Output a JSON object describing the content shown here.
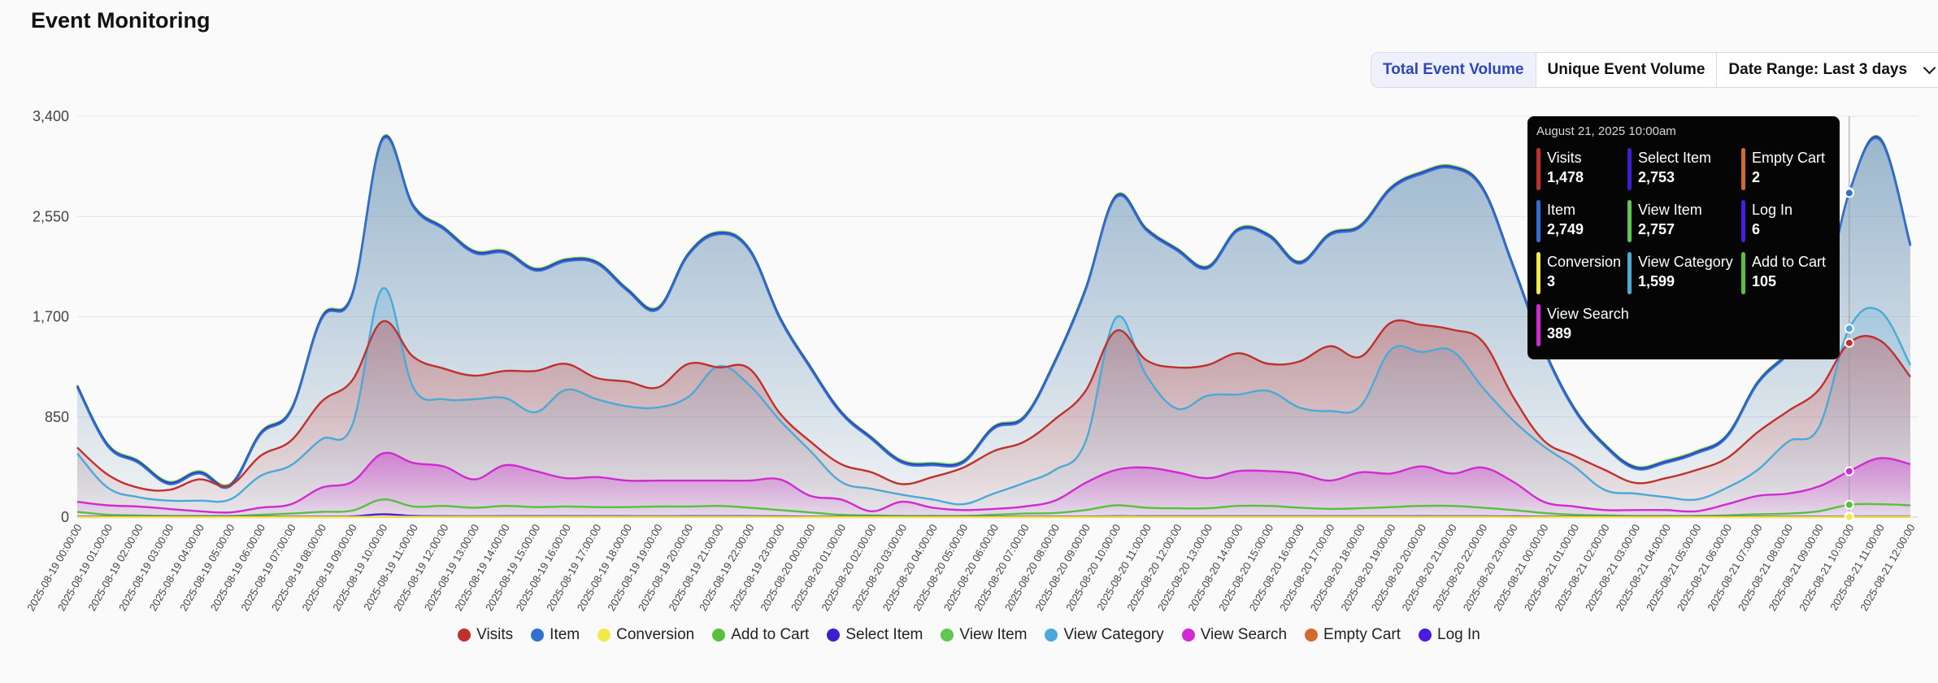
{
  "page": {
    "title": "Event Monitoring"
  },
  "toolbar": {
    "total_label": "Total Event Volume",
    "unique_label": "Unique Event Volume",
    "range_label": "Date Range: Last 3 days"
  },
  "tooltip": {
    "date": "August 21, 2025 10:00am",
    "entries": [
      {
        "name": "Visits",
        "value": "1,478",
        "color": "#c0302c"
      },
      {
        "name": "Select Item",
        "value": "2,753",
        "color": "#3a1fd0"
      },
      {
        "name": "Empty Cart",
        "value": "2",
        "color": "#d2692e"
      },
      {
        "name": "Item",
        "value": "2,749",
        "color": "#3070d0"
      },
      {
        "name": "View Item",
        "value": "2,757",
        "color": "#5ec94e"
      },
      {
        "name": "Log In",
        "value": "6",
        "color": "#4a1ae0"
      },
      {
        "name": "Conversion",
        "value": "3",
        "color": "#f2e84a"
      },
      {
        "name": "View Category",
        "value": "1,599",
        "color": "#4aa9d9"
      },
      {
        "name": "Add to Cart",
        "value": "105",
        "color": "#58c040"
      },
      {
        "name": "View Search",
        "value": "389",
        "color": "#d22ad2"
      }
    ]
  },
  "legend": [
    {
      "name": "Visits",
      "color": "#c0302c"
    },
    {
      "name": "Item",
      "color": "#3070d0"
    },
    {
      "name": "Conversion",
      "color": "#f2e84a"
    },
    {
      "name": "Add to Cart",
      "color": "#58c040"
    },
    {
      "name": "Select Item",
      "color": "#3a1fd0"
    },
    {
      "name": "View Item",
      "color": "#5ec94e"
    },
    {
      "name": "View Category",
      "color": "#4aa9d9"
    },
    {
      "name": "View Search",
      "color": "#d22ad2"
    },
    {
      "name": "Empty Cart",
      "color": "#d2692e"
    },
    {
      "name": "Log In",
      "color": "#4a1ae0"
    }
  ],
  "chart_data": {
    "type": "area",
    "title": "",
    "xlabel": "",
    "ylabel": "",
    "ylim": [
      0,
      3400
    ],
    "y_ticks": [
      "0",
      "850",
      "1,700",
      "2,550",
      "3,400"
    ],
    "grid": true,
    "legend_position": "bottom",
    "x": [
      "2025-08-19 00:00:00",
      "2025-08-19 01:00:00",
      "2025-08-19 02:00:00",
      "2025-08-19 03:00:00",
      "2025-08-19 04:00:00",
      "2025-08-19 05:00:00",
      "2025-08-19 06:00:00",
      "2025-08-19 07:00:00",
      "2025-08-19 08:00:00",
      "2025-08-19 09:00:00",
      "2025-08-19 10:00:00",
      "2025-08-19 11:00:00",
      "2025-08-19 12:00:00",
      "2025-08-19 13:00:00",
      "2025-08-19 14:00:00",
      "2025-08-19 15:00:00",
      "2025-08-19 16:00:00",
      "2025-08-19 17:00:00",
      "2025-08-19 18:00:00",
      "2025-08-19 19:00:00",
      "2025-08-19 20:00:00",
      "2025-08-19 21:00:00",
      "2025-08-19 22:00:00",
      "2025-08-19 23:00:00",
      "2025-08-20 00:00:00",
      "2025-08-20 01:00:00",
      "2025-08-20 02:00:00",
      "2025-08-20 03:00:00",
      "2025-08-20 04:00:00",
      "2025-08-20 05:00:00",
      "2025-08-20 06:00:00",
      "2025-08-20 07:00:00",
      "2025-08-20 08:00:00",
      "2025-08-20 09:00:00",
      "2025-08-20 10:00:00",
      "2025-08-20 11:00:00",
      "2025-08-20 12:00:00",
      "2025-08-20 13:00:00",
      "2025-08-20 14:00:00",
      "2025-08-20 15:00:00",
      "2025-08-20 16:00:00",
      "2025-08-20 17:00:00",
      "2025-08-20 18:00:00",
      "2025-08-20 19:00:00",
      "2025-08-20 20:00:00",
      "2025-08-20 21:00:00",
      "2025-08-20 22:00:00",
      "2025-08-20 23:00:00",
      "2025-08-21 00:00:00",
      "2025-08-21 01:00:00",
      "2025-08-21 02:00:00",
      "2025-08-21 03:00:00",
      "2025-08-21 04:00:00",
      "2025-08-21 05:00:00",
      "2025-08-21 06:00:00",
      "2025-08-21 07:00:00",
      "2025-08-21 08:00:00",
      "2025-08-21 09:00:00",
      "2025-08-21 10:00:00",
      "2025-08-21 11:00:00",
      "2025-08-21 12:00:00"
    ],
    "series": [
      {
        "name": "View Item",
        "color": "#5ec94e",
        "values": [
          1120,
          620,
          480,
          300,
          390,
          280,
          720,
          920,
          1700,
          1900,
          3220,
          2650,
          2460,
          2260,
          2260,
          2110,
          2190,
          2170,
          1940,
          1780,
          2240,
          2420,
          2280,
          1700,
          1280,
          900,
          680,
          480,
          460,
          480,
          770,
          860,
          1330,
          1940,
          2730,
          2450,
          2280,
          2130,
          2450,
          2400,
          2170,
          2410,
          2480,
          2800,
          2930,
          2980,
          2800,
          2140,
          1440,
          930,
          620,
          430,
          480,
          560,
          700,
          1150,
          1400,
          1710,
          2757,
          3220,
          2320
        ]
      },
      {
        "name": "Select Item",
        "color": "#3a1fd0",
        "values": [
          1110,
          610,
          470,
          290,
          380,
          270,
          710,
          910,
          1690,
          1890,
          3210,
          2640,
          2450,
          2250,
          2250,
          2100,
          2180,
          2160,
          1930,
          1770,
          2230,
          2410,
          2270,
          1690,
          1270,
          890,
          670,
          470,
          450,
          470,
          760,
          850,
          1320,
          1930,
          2720,
          2440,
          2270,
          2120,
          2440,
          2390,
          2160,
          2400,
          2470,
          2790,
          2920,
          2970,
          2790,
          2130,
          1430,
          920,
          610,
          420,
          470,
          550,
          690,
          1140,
          1390,
          1700,
          2753,
          3210,
          2310
        ]
      },
      {
        "name": "Item",
        "color": "#3070d0",
        "values": [
          1100,
          600,
          460,
          280,
          370,
          260,
          700,
          900,
          1680,
          1880,
          3200,
          2630,
          2440,
          2240,
          2240,
          2090,
          2170,
          2150,
          1920,
          1760,
          2220,
          2400,
          2260,
          1680,
          1260,
          880,
          660,
          460,
          440,
          460,
          750,
          840,
          1310,
          1920,
          2710,
          2430,
          2260,
          2110,
          2430,
          2380,
          2150,
          2390,
          2460,
          2780,
          2910,
          2960,
          2780,
          2120,
          1420,
          910,
          600,
          410,
          460,
          540,
          680,
          1130,
          1380,
          1690,
          2749,
          3200,
          2300
        ]
      },
      {
        "name": "View Category",
        "color": "#4aa9d9",
        "values": [
          540,
          250,
          170,
          140,
          140,
          150,
          350,
          440,
          660,
          780,
          1940,
          1100,
          1000,
          1000,
          1010,
          890,
          1080,
          1000,
          940,
          930,
          1020,
          1280,
          1120,
          820,
          560,
          300,
          240,
          190,
          150,
          110,
          200,
          290,
          400,
          640,
          1690,
          1200,
          920,
          1030,
          1040,
          1070,
          930,
          900,
          940,
          1420,
          1400,
          1410,
          1100,
          820,
          600,
          430,
          230,
          200,
          170,
          150,
          250,
          400,
          640,
          760,
          1599,
          1750,
          1290
        ]
      },
      {
        "name": "Visits",
        "color": "#c0302c",
        "values": [
          590,
          360,
          250,
          230,
          320,
          270,
          520,
          650,
          980,
          1160,
          1660,
          1360,
          1260,
          1200,
          1240,
          1240,
          1300,
          1180,
          1150,
          1100,
          1300,
          1270,
          1260,
          880,
          640,
          450,
          380,
          280,
          340,
          420,
          560,
          640,
          830,
          1070,
          1580,
          1330,
          1270,
          1290,
          1390,
          1300,
          1320,
          1450,
          1360,
          1650,
          1630,
          1590,
          1490,
          1020,
          650,
          520,
          400,
          290,
          330,
          400,
          500,
          720,
          900,
          1080,
          1478,
          1500,
          1190
        ]
      },
      {
        "name": "View Search",
        "color": "#d22ad2",
        "values": [
          130,
          100,
          90,
          70,
          50,
          40,
          80,
          110,
          250,
          300,
          540,
          460,
          430,
          320,
          440,
          390,
          330,
          340,
          310,
          310,
          310,
          310,
          310,
          320,
          180,
          150,
          50,
          130,
          80,
          60,
          70,
          90,
          140,
          290,
          400,
          420,
          380,
          330,
          390,
          390,
          370,
          310,
          380,
          370,
          430,
          370,
          420,
          300,
          130,
          90,
          60,
          60,
          60,
          50,
          110,
          180,
          200,
          260,
          389,
          500,
          450
        ]
      },
      {
        "name": "Add to Cart",
        "color": "#58c040",
        "values": [
          45,
          20,
          15,
          10,
          10,
          10,
          20,
          30,
          45,
          55,
          150,
          90,
          95,
          80,
          95,
          85,
          90,
          85,
          85,
          90,
          90,
          95,
          80,
          60,
          40,
          20,
          15,
          10,
          10,
          10,
          20,
          30,
          35,
          60,
          100,
          80,
          75,
          75,
          95,
          95,
          80,
          70,
          75,
          85,
          95,
          95,
          80,
          60,
          35,
          20,
          15,
          10,
          10,
          10,
          15,
          25,
          30,
          50,
          105,
          110,
          100
        ]
      },
      {
        "name": "Log In",
        "color": "#4a1ae0",
        "values": [
          5,
          5,
          5,
          5,
          5,
          5,
          5,
          5,
          5,
          6,
          25,
          10,
          8,
          7,
          8,
          8,
          8,
          8,
          8,
          7,
          8,
          8,
          8,
          6,
          5,
          5,
          5,
          5,
          5,
          5,
          5,
          5,
          5,
          5,
          8,
          7,
          7,
          7,
          7,
          7,
          7,
          7,
          7,
          7,
          8,
          7,
          7,
          6,
          5,
          5,
          5,
          5,
          5,
          5,
          5,
          5,
          5,
          5,
          6,
          6,
          6
        ]
      },
      {
        "name": "Empty Cart",
        "color": "#d2692e",
        "values": [
          1,
          1,
          1,
          1,
          1,
          1,
          1,
          1,
          1,
          1,
          3,
          2,
          2,
          2,
          2,
          2,
          2,
          2,
          2,
          2,
          2,
          2,
          2,
          1,
          1,
          1,
          1,
          1,
          1,
          1,
          1,
          1,
          1,
          1,
          2,
          2,
          2,
          2,
          2,
          2,
          2,
          2,
          2,
          2,
          2,
          2,
          2,
          1,
          1,
          1,
          1,
          1,
          1,
          1,
          1,
          1,
          1,
          1,
          2,
          2,
          2
        ]
      },
      {
        "name": "Conversion",
        "color": "#f2e84a",
        "values": [
          1,
          1,
          1,
          1,
          1,
          1,
          1,
          1,
          1,
          1,
          4,
          2,
          2,
          2,
          2,
          2,
          2,
          2,
          2,
          2,
          2,
          2,
          2,
          1,
          1,
          1,
          1,
          1,
          1,
          1,
          1,
          1,
          1,
          1,
          3,
          2,
          2,
          2,
          2,
          2,
          2,
          2,
          2,
          2,
          2,
          2,
          2,
          1,
          1,
          1,
          1,
          1,
          1,
          1,
          1,
          1,
          1,
          1,
          3,
          3,
          3
        ]
      }
    ],
    "hover_index": 58
  }
}
